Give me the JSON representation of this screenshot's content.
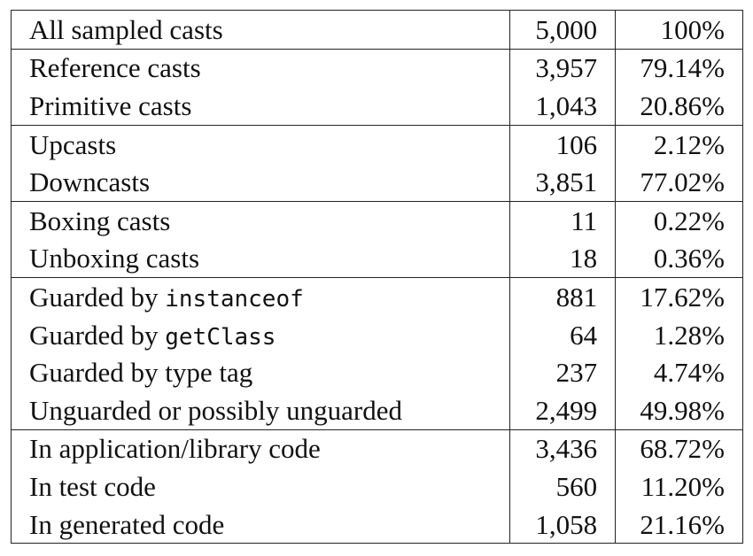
{
  "table": {
    "groups": [
      [
        {
          "label": "All sampled casts",
          "label_code": "",
          "count": "5,000",
          "percent": "100%"
        }
      ],
      [
        {
          "label": "Reference casts",
          "label_code": "",
          "count": "3,957",
          "percent": "79.14%"
        },
        {
          "label": "Primitive casts",
          "label_code": "",
          "count": "1,043",
          "percent": "20.86%"
        }
      ],
      [
        {
          "label": "Upcasts",
          "label_code": "",
          "count": "106",
          "percent": "2.12%"
        },
        {
          "label": "Downcasts",
          "label_code": "",
          "count": "3,851",
          "percent": "77.02%"
        }
      ],
      [
        {
          "label": "Boxing casts",
          "label_code": "",
          "count": "11",
          "percent": "0.22%"
        },
        {
          "label": "Unboxing casts",
          "label_code": "",
          "count": "18",
          "percent": "0.36%"
        }
      ],
      [
        {
          "label": "Guarded by ",
          "label_code": "instanceof",
          "count": "881",
          "percent": "17.62%"
        },
        {
          "label": "Guarded by ",
          "label_code": "getClass",
          "count": "64",
          "percent": "1.28%"
        },
        {
          "label": "Guarded by type tag",
          "label_code": "",
          "count": "237",
          "percent": "4.74%"
        },
        {
          "label": "Unguarded or possibly unguarded",
          "label_code": "",
          "count": "2,499",
          "percent": "49.98%"
        }
      ],
      [
        {
          "label": "In application/library code",
          "label_code": "",
          "count": "3,436",
          "percent": "68.72%"
        },
        {
          "label": "In test code",
          "label_code": "",
          "count": "560",
          "percent": "11.20%"
        },
        {
          "label": "In generated code",
          "label_code": "",
          "count": "1,058",
          "percent": "21.16%"
        }
      ]
    ]
  }
}
